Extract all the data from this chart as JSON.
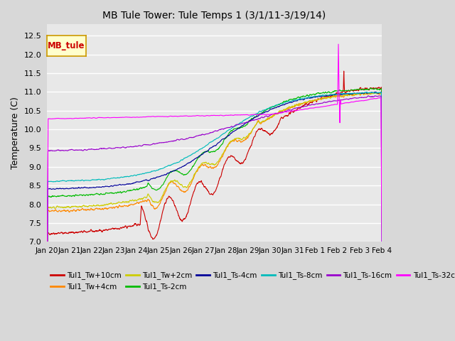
{
  "title": "MB Tule Tower: Tule Temps 1 (3/1/11-3/19/14)",
  "ylabel": "Temperature (C)",
  "ylim": [
    7.0,
    12.8
  ],
  "yticks": [
    7.0,
    7.5,
    8.0,
    8.5,
    9.0,
    9.5,
    10.0,
    10.5,
    11.0,
    11.5,
    12.0,
    12.5
  ],
  "background_color": "#d8d8d8",
  "plot_bg_color": "#e8e8e8",
  "grid_color": "#ffffff",
  "series": [
    {
      "name": "Tul1_Tw+10cm",
      "color": "#cc0000"
    },
    {
      "name": "Tul1_Tw+4cm",
      "color": "#ff8800"
    },
    {
      "name": "Tul1_Tw+2cm",
      "color": "#cccc00"
    },
    {
      "name": "Tul1_Ts-2cm",
      "color": "#00bb00"
    },
    {
      "name": "Tul1_Ts-4cm",
      "color": "#000099"
    },
    {
      "name": "Tul1_Ts-8cm",
      "color": "#00bbbb"
    },
    {
      "name": "Tul1_Ts-16cm",
      "color": "#9900cc"
    },
    {
      "name": "Tul1_Ts-32cm",
      "color": "#ff00ff"
    }
  ],
  "legend_box_label": "MB_tule",
  "legend_box_color": "#cc0000",
  "x_tick_labels": [
    "Jan 20",
    "Jan 21",
    "Jan 22",
    "Jan 23",
    "Jan 24",
    "Jan 25",
    "Jan 26",
    "Jan 27",
    "Jan 28",
    "Jan 29",
    "Jan 30",
    "Jan 31",
    "Feb 1",
    "Feb 2",
    "Feb 3",
    "Feb 4"
  ]
}
